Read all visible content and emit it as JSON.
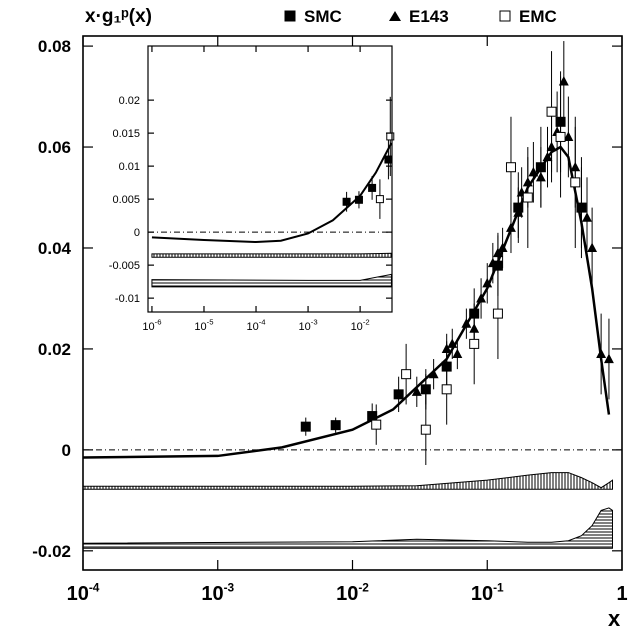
{
  "chart_data": [
    {
      "type": "scatter",
      "y_label": "x·g₁ᵖ(x)",
      "x_label": "x",
      "xscale": "log",
      "legend": "top",
      "zero_line": true,
      "xlim": [
        0.0001,
        1
      ],
      "ylim": [
        -0.0238,
        0.082
      ],
      "xticks": [
        {
          "value": 0.0001,
          "label": "10",
          "exponent": "-4"
        },
        {
          "value": 0.001,
          "label": "10",
          "exponent": "-3"
        },
        {
          "value": 0.01,
          "label": "10",
          "exponent": "-2"
        },
        {
          "value": 0.1,
          "label": "10",
          "exponent": "-1"
        },
        1
      ],
      "yticks": [
        -0.02,
        0,
        0.02,
        0.04,
        0.06,
        0.08
      ],
      "series": [
        {
          "name": "SMC",
          "marker": "filled-square",
          "color": "#000000",
          "x": [
            0.0045,
            0.0075,
            0.014,
            0.022,
            0.035,
            0.05,
            0.08,
            0.12,
            0.17,
            0.25,
            0.35,
            0.5
          ],
          "values": [
            0.0046,
            0.0049,
            0.0067,
            0.011,
            0.012,
            0.0165,
            0.027,
            0.0365,
            0.048,
            0.056,
            0.065,
            0.048
          ],
          "errors": [
            0.0018,
            0.0015,
            0.0025,
            0.0035,
            0.004,
            0.005,
            0.005,
            0.006,
            0.007,
            0.008,
            0.01,
            0.01
          ]
        },
        {
          "name": "E143",
          "marker": "filled-triangle",
          "color": "#000000",
          "x": [
            0.03,
            0.035,
            0.04,
            0.05,
            0.055,
            0.06,
            0.07,
            0.08,
            0.09,
            0.1,
            0.11,
            0.12,
            0.13,
            0.15,
            0.17,
            0.18,
            0.2,
            0.22,
            0.25,
            0.28,
            0.3,
            0.33,
            0.37,
            0.4,
            0.45,
            0.5,
            0.55,
            0.6,
            0.7,
            0.8
          ],
          "values": [
            0.0115,
            0.012,
            0.015,
            0.02,
            0.021,
            0.019,
            0.025,
            0.024,
            0.03,
            0.033,
            0.037,
            0.039,
            0.04,
            0.044,
            0.047,
            0.051,
            0.053,
            0.055,
            0.054,
            0.058,
            0.06,
            0.063,
            0.073,
            0.062,
            0.056,
            0.048,
            0.046,
            0.04,
            0.019,
            0.018
          ],
          "errors": [
            0.003,
            0.003,
            0.003,
            0.003,
            0.003,
            0.003,
            0.003,
            0.003,
            0.004,
            0.004,
            0.004,
            0.004,
            0.004,
            0.005,
            0.005,
            0.005,
            0.005,
            0.006,
            0.006,
            0.006,
            0.007,
            0.008,
            0.008,
            0.008,
            0.008,
            0.008,
            0.008,
            0.008,
            0.008,
            0.008
          ]
        },
        {
          "name": "EMC",
          "marker": "open-square",
          "color": "#000000",
          "x": [
            0.015,
            0.025,
            0.035,
            0.05,
            0.08,
            0.12,
            0.15,
            0.2,
            0.3,
            0.35,
            0.45
          ],
          "values": [
            0.005,
            0.015,
            0.004,
            0.012,
            0.021,
            0.027,
            0.056,
            0.05,
            0.067,
            0.062,
            0.053
          ],
          "errors": [
            0.004,
            0.006,
            0.007,
            0.007,
            0.008,
            0.009,
            0.01,
            0.01,
            0.012,
            0.012,
            0.013
          ]
        }
      ],
      "fit": {
        "x": [
          0.0001,
          0.001,
          0.003,
          0.01,
          0.02,
          0.05,
          0.1,
          0.2,
          0.3,
          0.35,
          0.4,
          0.5,
          0.6,
          0.7,
          0.8
        ],
        "values": [
          -0.0015,
          -0.0012,
          0.0005,
          0.004,
          0.008,
          0.018,
          0.032,
          0.052,
          0.059,
          0.06,
          0.058,
          0.045,
          0.032,
          0.018,
          0.007
        ]
      },
      "bands": [
        {
          "hatch": "vertical",
          "x": [
            0.0001,
            0.01,
            0.03,
            0.1,
            0.2,
            0.3,
            0.4,
            0.5,
            0.6,
            0.7,
            0.8,
            0.85
          ],
          "lower": [
            -0.0078,
            -0.0078,
            -0.0078,
            -0.0078,
            -0.0078,
            -0.0078,
            -0.0078,
            -0.0078,
            -0.0078,
            -0.0078,
            -0.0078,
            -0.0078
          ],
          "upper": [
            -0.0072,
            -0.0072,
            -0.0071,
            -0.006,
            -0.005,
            -0.0045,
            -0.0045,
            -0.0055,
            -0.0065,
            -0.0075,
            -0.0065,
            -0.006
          ]
        },
        {
          "hatch": "horizontal",
          "x": [
            0.0001,
            0.01,
            0.03,
            0.1,
            0.2,
            0.3,
            0.4,
            0.5,
            0.6,
            0.7,
            0.8,
            0.85
          ],
          "lower": [
            -0.0195,
            -0.0195,
            -0.0195,
            -0.0195,
            -0.0195,
            -0.0195,
            -0.0195,
            -0.0195,
            -0.0195,
            -0.0195,
            -0.0195,
            -0.0195
          ],
          "upper": [
            -0.0185,
            -0.0182,
            -0.0177,
            -0.018,
            -0.0183,
            -0.0183,
            -0.018,
            -0.017,
            -0.015,
            -0.012,
            -0.0115,
            -0.012
          ]
        }
      ]
    },
    {
      "type": "scatter",
      "xscale": "log",
      "zero_line": true,
      "xlim": [
        8.4e-07,
        0.041
      ],
      "ylim": [
        -0.0121,
        0.0282
      ],
      "xticks": [
        {
          "value": 1e-06,
          "label": "10",
          "exponent": "-6"
        },
        {
          "value": 1e-05,
          "label": "10",
          "exponent": "-5"
        },
        {
          "value": 0.0001,
          "label": "10",
          "exponent": "-4"
        },
        {
          "value": 0.001,
          "label": "10",
          "exponent": "-3"
        },
        {
          "value": 0.01,
          "label": "10",
          "exponent": "-2"
        }
      ],
      "yticks": [
        -0.01,
        -0.005,
        0,
        0.005,
        0.01,
        0.015,
        0.02
      ],
      "series": [
        {
          "marker": "filled-square",
          "color": "#000000",
          "x": [
            0.0055,
            0.0095,
            0.017,
            0.035
          ],
          "values": [
            0.0046,
            0.0049,
            0.0067,
            0.011
          ],
          "errors": [
            0.0015,
            0.0013,
            0.0018,
            0.003
          ]
        },
        {
          "marker": "open-square",
          "color": "#000000",
          "x": [
            0.024,
            0.038
          ],
          "values": [
            0.005,
            0.0145
          ],
          "errors": [
            0.003,
            0.006
          ]
        }
      ],
      "fit": {
        "x": [
          1e-06,
          1e-05,
          0.0001,
          0.0003,
          0.001,
          0.003,
          0.01,
          0.02,
          0.04
        ],
        "values": [
          -0.0008,
          -0.0012,
          -0.0015,
          -0.0013,
          -0.0002,
          0.0018,
          0.0055,
          0.009,
          0.0135
        ]
      },
      "bands": [
        {
          "hatch": "vertical",
          "x": [
            1e-06,
            0.001,
            0.01,
            0.04
          ],
          "lower": [
            -0.0038,
            -0.0038,
            -0.0038,
            -0.0038
          ],
          "upper": [
            -0.0033,
            -0.0033,
            -0.0033,
            -0.0032
          ]
        },
        {
          "hatch": "horizontal",
          "x": [
            1e-06,
            0.001,
            0.01,
            0.04
          ],
          "lower": [
            -0.0083,
            -0.0083,
            -0.0083,
            -0.0083
          ],
          "upper": [
            -0.0072,
            -0.0073,
            -0.0073,
            -0.0064
          ]
        }
      ]
    }
  ]
}
